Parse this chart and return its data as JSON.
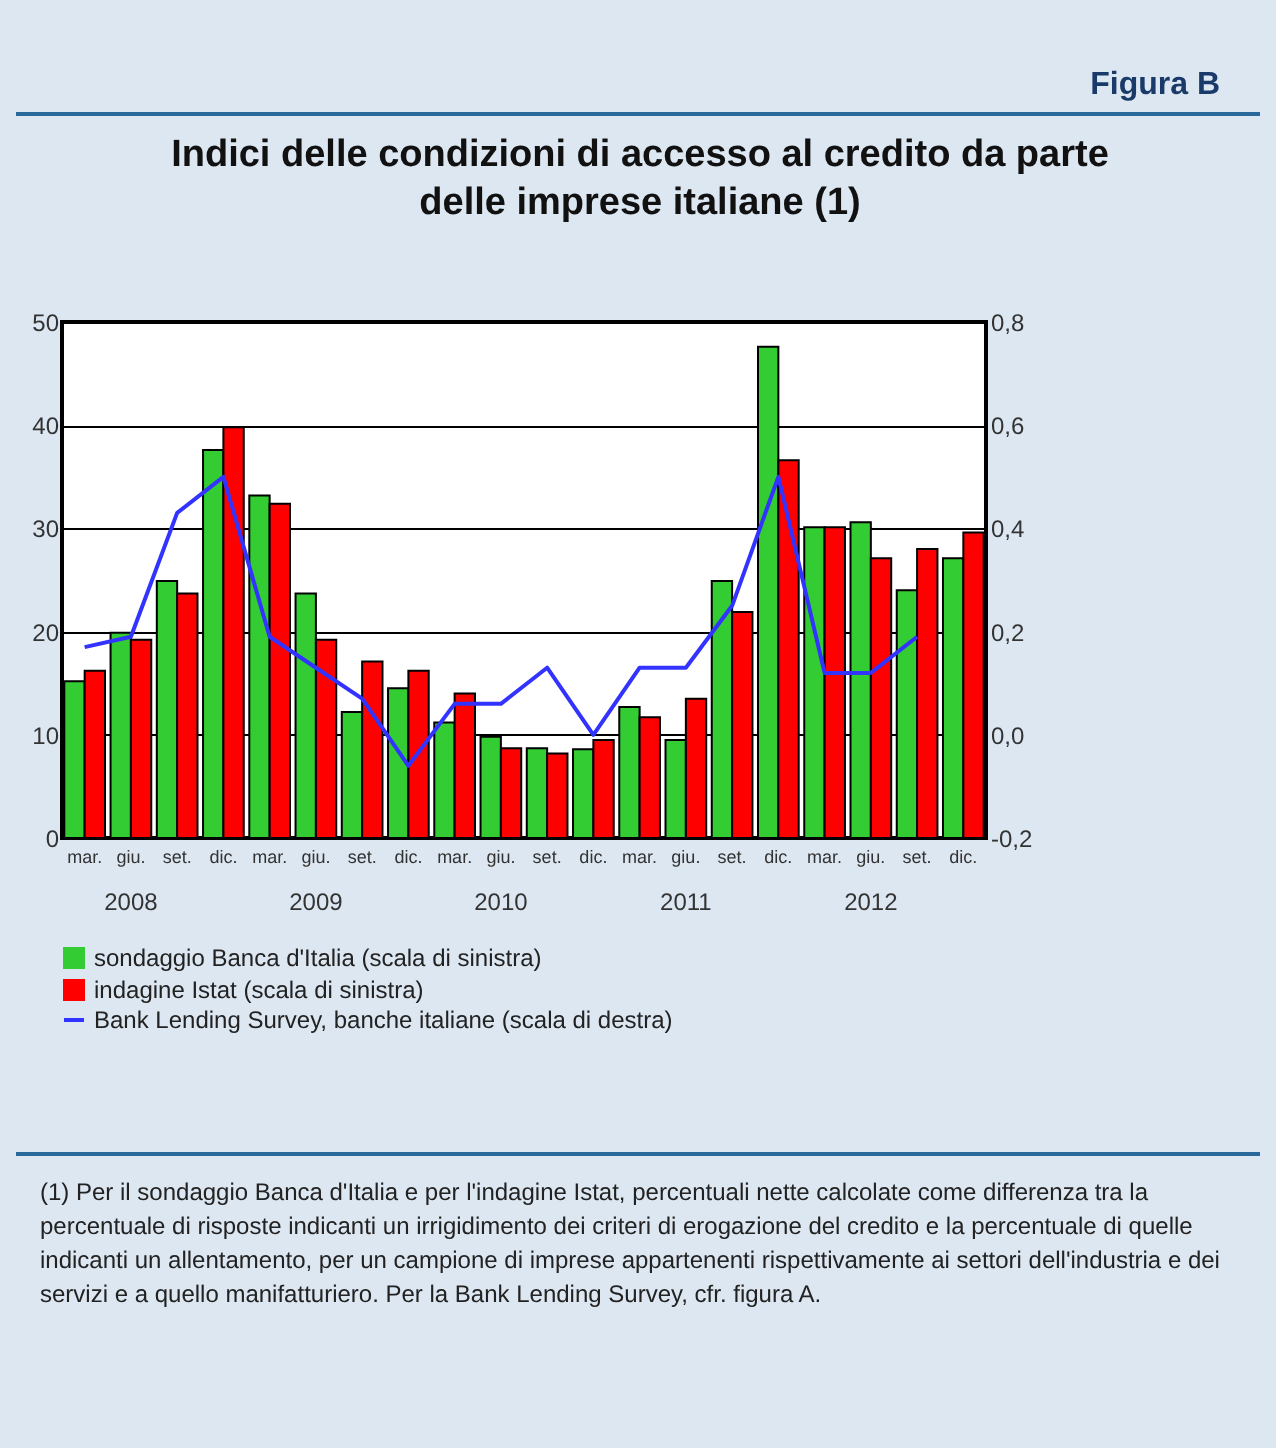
{
  "chart_data": {
    "type": "bar",
    "title": "Indici delle condizioni di accesso al credito da parte delle imprese italiane (1)",
    "categories": [
      "mar.",
      "giu.",
      "set.",
      "dic.",
      "mar.",
      "giu.",
      "set.",
      "dic.",
      "mar.",
      "giu.",
      "set.",
      "dic.",
      "mar.",
      "giu.",
      "set.",
      "dic.",
      "mar.",
      "giu.",
      "set.",
      "dic."
    ],
    "series": [
      {
        "name": "sondaggio Banca d'Italia (scala di sinistra)",
        "color": "#33cc33",
        "values": [
          15.2,
          19.9,
          24.9,
          37.6,
          33.2,
          23.7,
          12.2,
          14.5,
          11.2,
          9.8,
          8.7,
          8.6,
          12.7,
          9.5,
          24.9,
          47.6,
          30.1,
          30.6,
          24.0,
          27.1
        ]
      },
      {
        "name": "indagine Istat (scala di sinistra)",
        "color": "#ff0000",
        "values": [
          16.2,
          19.2,
          23.7,
          39.8,
          32.4,
          19.2,
          17.1,
          16.2,
          14.0,
          8.7,
          8.2,
          9.5,
          11.7,
          13.5,
          21.9,
          36.6,
          30.1,
          27.1,
          28.0,
          29.6
        ]
      },
      {
        "name": "Bank Lending Survey, banche italiane (scala di destra)",
        "color": "#3333ff",
        "type": "line",
        "axis": "y2",
        "values": [
          0.17,
          0.19,
          0.43,
          0.5,
          0.19,
          0.13,
          0.07,
          -0.06,
          0.06,
          0.06,
          0.13,
          0,
          0.13,
          0.13,
          0.25,
          0.5,
          0.12,
          0.12,
          0.19,
          null
        ]
      }
    ],
    "ylim": [
      0,
      50
    ],
    "yticks": [
      0,
      10,
      20,
      30,
      40,
      50
    ],
    "y2lim": [
      -0.2,
      0.8
    ],
    "y2ticks": [
      {
        "value": -0.2,
        "label": "-0,2"
      },
      {
        "value": 0,
        "label": "0,0"
      },
      {
        "value": 0.2,
        "label": "0,2"
      },
      {
        "value": 0.4,
        "label": "0,4"
      },
      {
        "value": 0.6,
        "label": "0,6"
      },
      {
        "value": 0.8,
        "label": "0,8"
      }
    ],
    "grid": "y",
    "legend": "bottom",
    "annotations": [
      "Figura B",
      "2008",
      "2009",
      "2010",
      "2011",
      "2012",
      "(1) Per il sondaggio Banca d'Italia e per l'indagine Istat, percentuali nette calcolate come differenza tra la percentuale di risposte indicanti un irrigidimento dei criteri di erogazione del credito e la percentuale di quelle indicanti un allentamento, per un campione di imprese appartenenti rispettivamente ai settori dell'industria e dei servizi e a quello manifatturiero. Per la Bank Lending Survey, cfr. figura A."
    ]
  }
}
